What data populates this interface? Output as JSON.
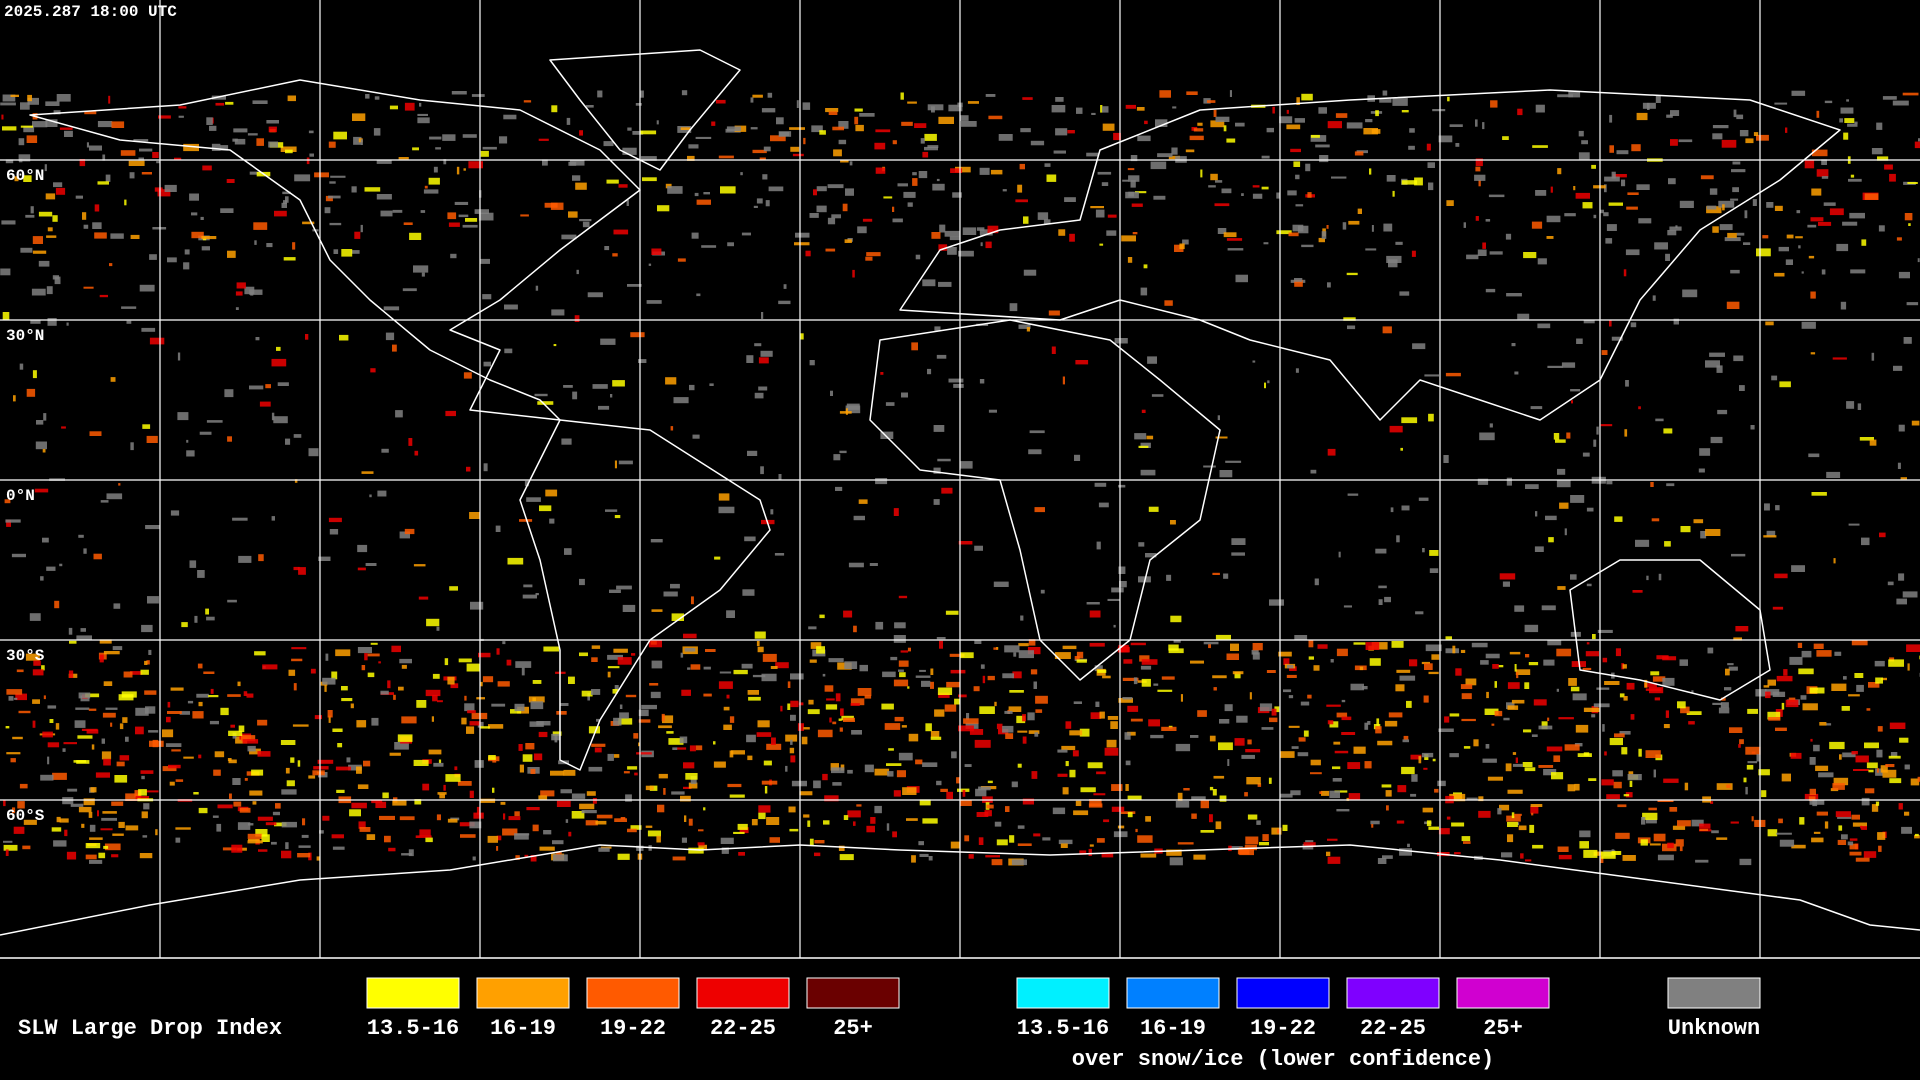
{
  "header": {
    "timestamp": "2025.287 18:00 UTC"
  },
  "map": {
    "latitude_labels": [
      "60°N",
      "30°N",
      "0°N",
      "30°S",
      "60°S"
    ]
  },
  "legend": {
    "title": "SLW Large Drop Index",
    "groups": [
      {
        "items": [
          {
            "label": "13.5-16",
            "color": "#ffff00"
          },
          {
            "label": "16-19",
            "color": "#ffa000"
          },
          {
            "label": "19-22",
            "color": "#ff5a00"
          },
          {
            "label": "22-25",
            "color": "#ee0000"
          },
          {
            "label": "25+",
            "color": "#6a0000"
          }
        ]
      },
      {
        "items": [
          {
            "label": "13.5-16",
            "color": "#00f0ff"
          },
          {
            "label": "16-19",
            "color": "#0080ff"
          },
          {
            "label": "19-22",
            "color": "#0000ff"
          },
          {
            "label": "22-25",
            "color": "#7f00ff"
          },
          {
            "label": "25+",
            "color": "#d000d0"
          }
        ],
        "caption": "over snow/ice (lower confidence)"
      },
      {
        "items": [
          {
            "label": "Unknown",
            "color": "#808080"
          }
        ]
      }
    ]
  }
}
